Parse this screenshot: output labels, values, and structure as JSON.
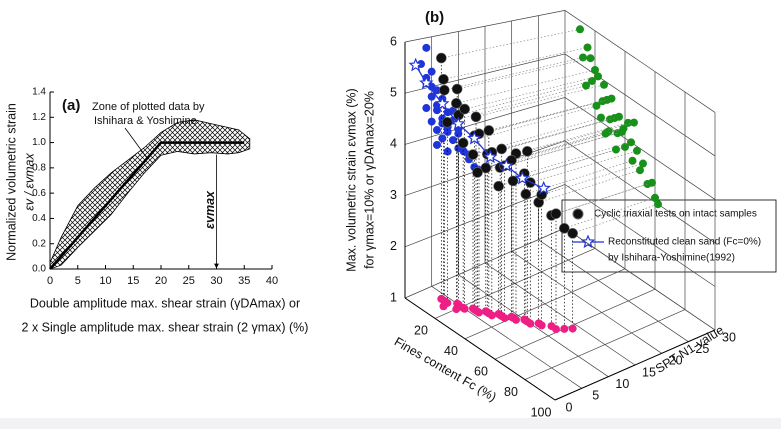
{
  "chart_data": [
    {
      "type": "band",
      "label": "(a)",
      "annotation": [
        "Zone of plotted data by",
        "Ishihara & Yoshimine"
      ],
      "marker_label": "εvmax",
      "marker_x": 30,
      "ylabel": [
        "Normalized volumetric strain",
        "εv / εvmax"
      ],
      "xlabel": [
        "Double amplitude max. shear strain (γDAmax) or",
        "2 x Single amplitude max. shear strain (2 γmax)  (%)"
      ],
      "band": {
        "x": [
          0,
          2,
          5,
          8,
          11,
          14,
          17,
          20,
          23,
          26,
          29,
          32,
          34,
          36
        ],
        "high": [
          0.05,
          0.25,
          0.5,
          0.64,
          0.76,
          0.86,
          0.96,
          1.08,
          1.16,
          1.18,
          1.15,
          1.12,
          1.1,
          1.03
        ],
        "low": [
          0,
          0.03,
          0.17,
          0.3,
          0.43,
          0.6,
          0.76,
          0.9,
          0.93,
          0.91,
          0.92,
          0.91,
          0.92,
          0.95
        ]
      },
      "line": {
        "x": [
          0,
          20,
          35
        ],
        "values": [
          0,
          1,
          1
        ]
      },
      "color": "#000000",
      "xlim": [
        0,
        40
      ],
      "xticks": [
        0,
        5,
        10,
        15,
        20,
        25,
        30,
        35,
        40
      ],
      "ylim": [
        0,
        1.4
      ],
      "yticks": [
        {
          "value": 0,
          "label": "0.0"
        },
        {
          "value": 0.2,
          "label": "0.2"
        },
        {
          "value": 0.4,
          "label": "0.4"
        },
        {
          "value": 0.6,
          "label": "0.6"
        },
        {
          "value": 0.8,
          "label": "0.8"
        },
        {
          "value": 1,
          "label": "1.0"
        },
        {
          "value": 1.2,
          "label": "1.2"
        },
        {
          "value": 1.4,
          "label": "1.4"
        }
      ]
    },
    {
      "type": "scatter3d",
      "label": "(b)",
      "xlabel": "Fines content Fc (%)",
      "ylabel": "SPT N1-value",
      "zlabel": [
        "Max. volumetric strain  εvmax (%)",
        "for γmax=10% or γDAmax=20%"
      ],
      "xlim": [
        0,
        100
      ],
      "xticks": [
        20,
        40,
        60,
        80,
        100
      ],
      "ylim": [
        0,
        30
      ],
      "yticks": [
        0,
        5,
        10,
        15,
        20,
        25,
        30
      ],
      "zlim": [
        1,
        6
      ],
      "zticks": [
        1,
        2,
        3,
        4,
        5,
        6
      ],
      "projection_colors": {
        "x_wall": "#1f35d9",
        "y_wall": "#17911a",
        "floor": "#ee1f84"
      },
      "series": [
        {
          "name": "Cyclic triaxial tests on intact samples",
          "color": "#111111",
          "x": [
            12,
            18,
            25,
            30,
            35,
            40,
            45,
            22,
            28,
            33,
            38,
            15,
            20,
            50,
            55,
            42,
            48,
            60,
            26,
            31,
            36,
            10,
            17,
            44,
            52,
            58,
            24,
            29,
            34,
            39,
            46,
            62,
            14,
            21,
            27
          ],
          "y": [
            4,
            5,
            6,
            7,
            8,
            9,
            10,
            5,
            6,
            7,
            8,
            3,
            4,
            11,
            12,
            9,
            10,
            13,
            6,
            7,
            8,
            4,
            5,
            10,
            11,
            12,
            6,
            7,
            8,
            9,
            10,
            14,
            4,
            5,
            6
          ],
          "values": [
            5.2,
            4.8,
            4.5,
            4.2,
            4.0,
            3.8,
            3.6,
            5.0,
            4.6,
            4.3,
            4.1,
            5.5,
            5.1,
            3.5,
            3.3,
            4.4,
            3.9,
            3.1,
            4.9,
            4.7,
            4.4,
            5.8,
            5.3,
            4.0,
            3.7,
            3.4,
            4.1,
            3.9,
            3.6,
            4.2,
            4.5,
            3.0,
            4.6,
            4.3,
            3.8
          ]
        },
        {
          "name": [
            "Reconstituted clean sand (Fc=0%)",
            "by Ishihara-Yoshimine(1992)"
          ],
          "color": "#1f35d9",
          "x": [
            0,
            0,
            0,
            0,
            0,
            0,
            0,
            0,
            0
          ],
          "y": [
            2,
            4,
            7,
            10,
            13,
            16,
            19,
            22,
            26
          ],
          "values": [
            5.5,
            5.1,
            4.6,
            4.1,
            3.7,
            3.2,
            2.9,
            2.5,
            2.1
          ]
        }
      ]
    }
  ]
}
